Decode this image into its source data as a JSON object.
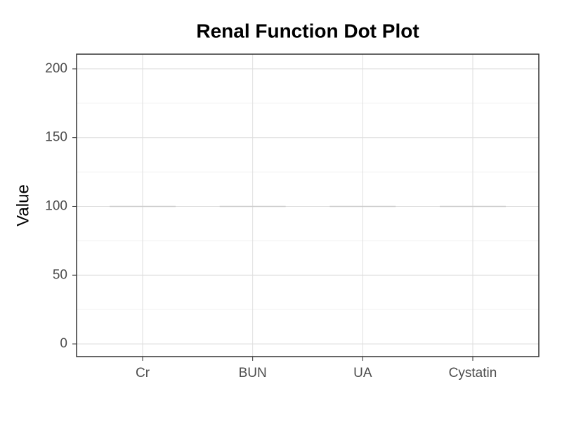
{
  "chart_data": {
    "type": "dot",
    "title": "Renal Function Dot Plot",
    "y_label": "Value",
    "categories": [
      "Cr",
      "BUN",
      "UA",
      "Cystatin"
    ],
    "values": [
      100,
      100,
      100,
      100
    ],
    "color": "#cccccc",
    "ylim": [
      -9.2,
      210.7
    ],
    "yticks": [
      0,
      50,
      100,
      150,
      200
    ],
    "grid": true
  }
}
